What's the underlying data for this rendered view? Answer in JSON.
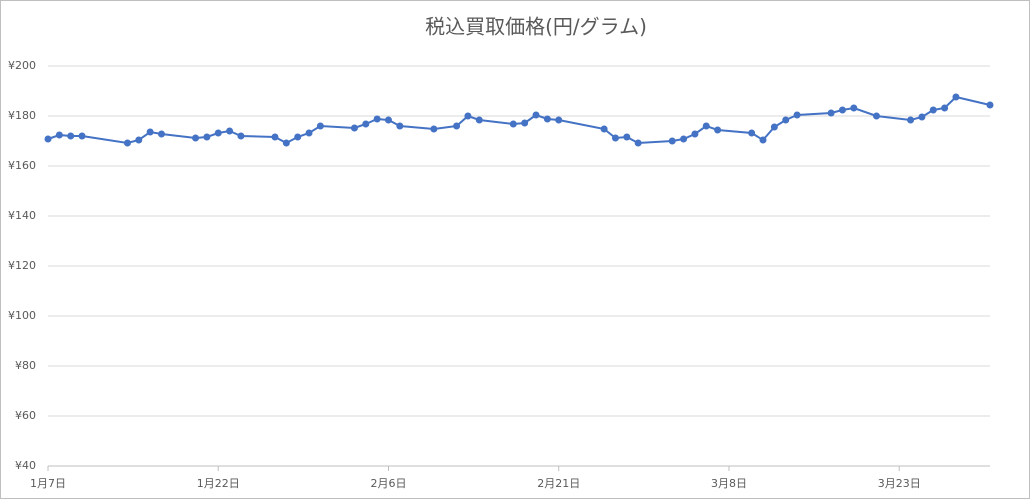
{
  "chart_data": {
    "type": "line",
    "title": "税込買取価格(円/グラム)",
    "x": [
      "01-07",
      "01-08",
      "01-09",
      "01-10",
      "01-14",
      "01-15",
      "01-16",
      "01-17",
      "01-20",
      "01-21",
      "01-22",
      "01-23",
      "01-24",
      "01-27",
      "01-28",
      "01-29",
      "01-30",
      "01-31",
      "02-03",
      "02-04",
      "02-05",
      "02-06",
      "02-07",
      "02-10",
      "02-12",
      "02-13",
      "02-14",
      "02-17",
      "02-18",
      "02-19",
      "02-20",
      "02-21",
      "02-25",
      "02-26",
      "02-27",
      "02-28",
      "03-03",
      "03-04",
      "03-05",
      "03-06",
      "03-07",
      "03-10",
      "03-11",
      "03-12",
      "03-13",
      "03-14",
      "03-17",
      "03-18",
      "03-19",
      "03-21",
      "03-24",
      "03-25",
      "03-26",
      "03-27",
      "03-28",
      "03-31"
    ],
    "series": [
      {
        "color": "#4472c4",
        "values": [
          170.8,
          172.4,
          172,
          172,
          169.2,
          170.4,
          173.6,
          172.8,
          171.2,
          171.6,
          173.2,
          174,
          172,
          171.6,
          169.2,
          171.6,
          173.2,
          176,
          175.2,
          176.8,
          178.8,
          178.4,
          176,
          174.8,
          176,
          180,
          178.4,
          176.8,
          177.2,
          180.4,
          178.8,
          178.4,
          174.8,
          171.2,
          171.6,
          169.2,
          170,
          170.8,
          172.8,
          176,
          174.4,
          173.2,
          170.4,
          175.6,
          178.4,
          180.4,
          181.2,
          182.4,
          183.2,
          180,
          178.4,
          179.6,
          182.4,
          183.2,
          187.6,
          184.4
        ]
      }
    ],
    "xlim": [
      "01-07",
      "03-31"
    ],
    "xticks": [
      {
        "value": "01-07",
        "label": "1月7日"
      },
      {
        "value": "01-22",
        "label": "1月22日"
      },
      {
        "value": "02-06",
        "label": "2月6日"
      },
      {
        "value": "02-21",
        "label": "2月21日"
      },
      {
        "value": "03-08",
        "label": "3月8日"
      },
      {
        "value": "03-23",
        "label": "3月23日"
      }
    ],
    "ylim": [
      40,
      200
    ],
    "yticks": [
      {
        "value": 40,
        "label": "¥40"
      },
      {
        "value": 60,
        "label": "¥60"
      },
      {
        "value": 80,
        "label": "¥80"
      },
      {
        "value": 100,
        "label": "¥100"
      },
      {
        "value": 120,
        "label": "¥120"
      },
      {
        "value": 140,
        "label": "¥140"
      },
      {
        "value": 160,
        "label": "¥160"
      },
      {
        "value": 180,
        "label": "¥180"
      },
      {
        "value": 200,
        "label": "¥200"
      }
    ],
    "grid": true
  }
}
